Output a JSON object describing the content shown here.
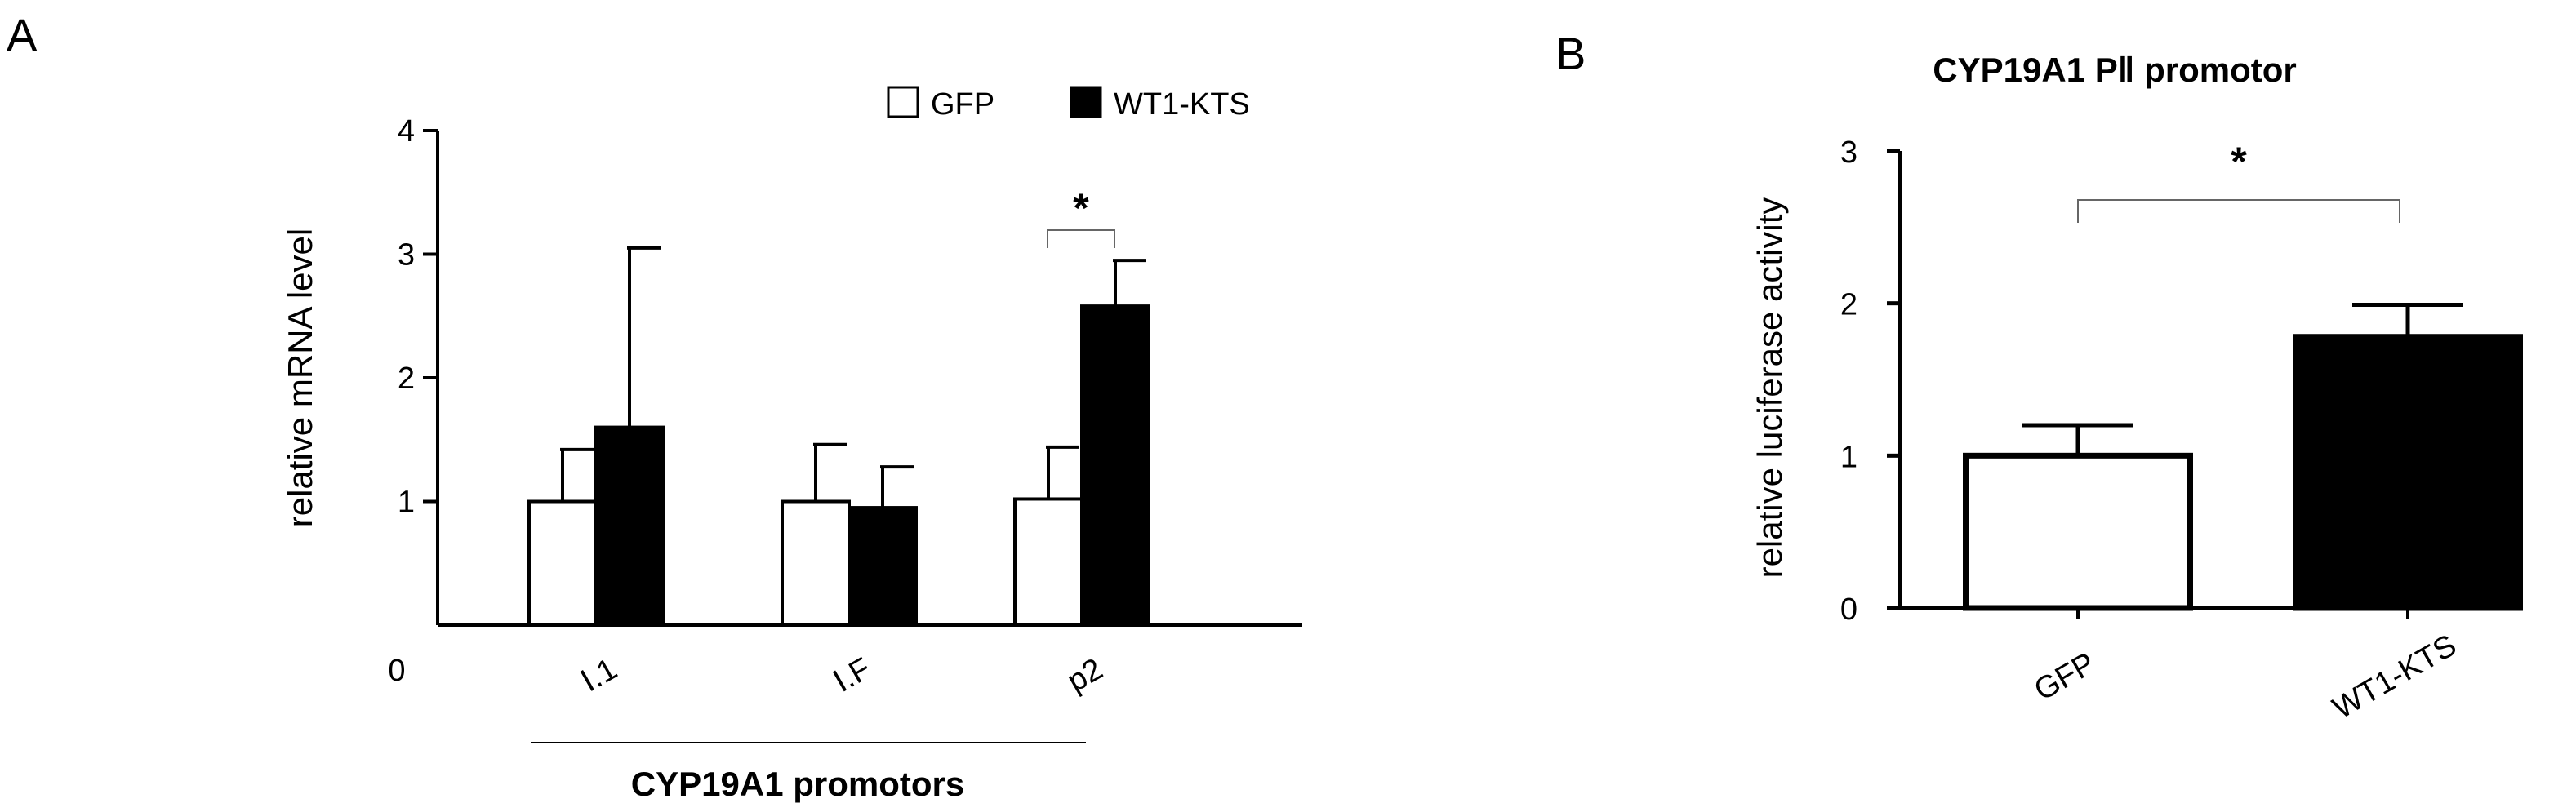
{
  "panels": {
    "a_label": "A",
    "b_label": "B"
  },
  "chart_data": [
    {
      "type": "bar",
      "panel": "A",
      "title": "",
      "xlabel": "CYP19A1 promotors",
      "ylabel": "relative mRNA level",
      "ylim": [
        0,
        4
      ],
      "yticks": [
        "0",
        "1",
        "2",
        "3",
        "4"
      ],
      "categories": [
        "Ⅰ.1",
        "Ⅰ.F",
        "p2"
      ],
      "series": [
        {
          "name": "GFP",
          "color": "#ffffff",
          "values": [
            1.0,
            1.0,
            1.02
          ],
          "errors": [
            0.42,
            0.46,
            0.42
          ]
        },
        {
          "name": "WT1-KTS",
          "color": "#000000",
          "values": [
            1.6,
            0.95,
            2.58
          ],
          "errors": [
            1.45,
            0.33,
            0.37
          ]
        }
      ],
      "significance": [
        {
          "category": "p2",
          "label": "*"
        }
      ],
      "legend": "top-right",
      "grid": false
    },
    {
      "type": "bar",
      "panel": "B",
      "title": "CYP19A1 PⅡ promotor",
      "xlabel": "",
      "ylabel": "relative luciferase activity",
      "ylim": [
        0,
        3
      ],
      "yticks": [
        "0",
        "1",
        "2",
        "3"
      ],
      "categories": [
        "GFP",
        "WT1-KTS"
      ],
      "colors": [
        "#ffffff",
        "#000000"
      ],
      "values": [
        1.0,
        1.78
      ],
      "errors": [
        0.2,
        0.21
      ],
      "significance": [
        {
          "between": [
            "GFP",
            "WT1-KTS"
          ],
          "label": "*"
        }
      ],
      "grid": false
    }
  ]
}
